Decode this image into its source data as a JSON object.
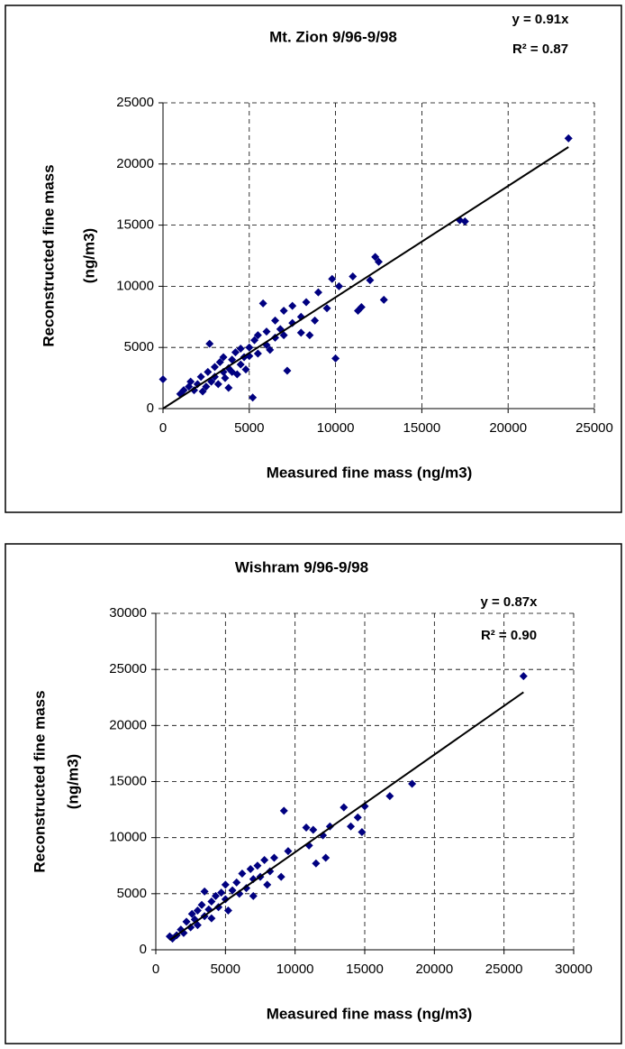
{
  "chart_data": [
    {
      "type": "scatter",
      "title": "Mt. Zion 9/96-9/98",
      "annotations": [
        "y = 0.91x",
        "R² = 0.87"
      ],
      "trendline": {
        "slope": 0.91
      },
      "xlabel": "Measured fine mass (ng/m3)",
      "ylabel": [
        "Reconstructed fine mass",
        "(ng/m3)"
      ],
      "xlim": [
        0,
        25000
      ],
      "ylim": [
        0,
        25000
      ],
      "xticks": [
        0,
        5000,
        10000,
        15000,
        20000,
        25000
      ],
      "yticks": [
        0,
        5000,
        10000,
        15000,
        20000,
        25000
      ],
      "grid": true,
      "color": "#000080",
      "x": [
        0,
        1000,
        1200,
        1500,
        1600,
        1800,
        2000,
        2200,
        2300,
        2500,
        2600,
        2700,
        2800,
        3000,
        3000,
        3200,
        3300,
        3500,
        3500,
        3600,
        3800,
        3800,
        4000,
        4000,
        4200,
        4300,
        4500,
        4500,
        4700,
        4800,
        5000,
        5000,
        5200,
        5300,
        5500,
        5500,
        5800,
        6000,
        6000,
        6200,
        6500,
        6500,
        6800,
        7000,
        7000,
        7200,
        7500,
        7500,
        8000,
        8000,
        8300,
        8500,
        8800,
        9000,
        9500,
        9800,
        10000,
        10200,
        11000,
        11300,
        11500,
        12000,
        12300,
        12500,
        12800,
        17200,
        17500,
        23500
      ],
      "values": [
        2400,
        1200,
        1500,
        1800,
        2200,
        1500,
        2000,
        2600,
        1400,
        1800,
        3000,
        5300,
        2200,
        2600,
        3400,
        2000,
        3800,
        3000,
        4200,
        2500,
        3300,
        1700,
        4000,
        3000,
        4600,
        2800,
        3600,
        4900,
        4200,
        3200,
        5000,
        4300,
        900,
        5600,
        4500,
        6000,
        8600,
        5200,
        6300,
        4800,
        7200,
        5800,
        6500,
        8000,
        6000,
        3100,
        7000,
        8400,
        7500,
        6200,
        8700,
        6000,
        7200,
        9500,
        8200,
        10600,
        4100,
        10000,
        10800,
        8000,
        8300,
        10500,
        12400,
        12000,
        8900,
        15400,
        15300,
        22100
      ]
    },
    {
      "type": "scatter",
      "title": "Wishram 9/96-9/98",
      "annotations": [
        "y = 0.87x",
        "R² = 0.90"
      ],
      "trendline": {
        "slope": 0.87
      },
      "xlabel": "Measured fine mass (ng/m3)",
      "ylabel": [
        "Reconstructed fine mass",
        "(ng/m3)"
      ],
      "xlim": [
        0,
        30000
      ],
      "ylim": [
        0,
        30000
      ],
      "xticks": [
        0,
        5000,
        10000,
        15000,
        20000,
        25000,
        30000
      ],
      "yticks": [
        0,
        5000,
        10000,
        15000,
        20000,
        25000,
        30000
      ],
      "grid": true,
      "color": "#000080",
      "x": [
        1000,
        1200,
        1500,
        1800,
        2000,
        2200,
        2500,
        2600,
        2800,
        3000,
        3000,
        3300,
        3500,
        3500,
        3800,
        4000,
        4000,
        4300,
        4500,
        4700,
        5000,
        5000,
        5200,
        5500,
        5800,
        6000,
        6200,
        6500,
        6800,
        7000,
        7000,
        7300,
        7500,
        7800,
        8000,
        8200,
        8500,
        9000,
        9200,
        9500,
        10800,
        11000,
        11300,
        11500,
        12000,
        12200,
        12500,
        13500,
        14000,
        14500,
        14800,
        15000,
        16800,
        18400,
        26400
      ],
      "values": [
        1200,
        1000,
        1300,
        1800,
        1500,
        2500,
        2000,
        3200,
        2700,
        3500,
        2200,
        4000,
        3000,
        5200,
        3600,
        4300,
        2800,
        4800,
        3800,
        5100,
        4500,
        5800,
        3500,
        5300,
        6000,
        5000,
        6800,
        5500,
        7200,
        6300,
        4800,
        7500,
        6500,
        8000,
        5800,
        7000,
        8200,
        6500,
        12400,
        8800,
        10900,
        9300,
        10700,
        7700,
        10200,
        8200,
        11000,
        12700,
        11000,
        11800,
        10500,
        12800,
        13700,
        14800,
        24400
      ]
    }
  ]
}
